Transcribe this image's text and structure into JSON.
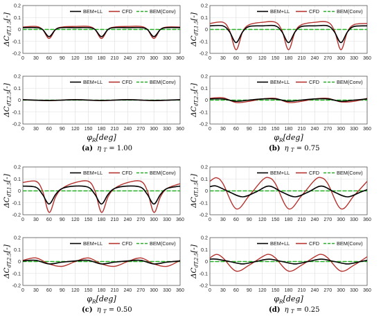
{
  "figure": {
    "xlabel_sym": "φ",
    "xlabel_sub": "R",
    "xlabel_unit": "[deg]",
    "ylabel_top": {
      "pre": "ΔC",
      "sub": "dT,1.5",
      "unit": "[-]"
    },
    "ylabel_bot": {
      "pre": "ΔC",
      "sub": "dT,2.5",
      "unit": "[-]"
    },
    "legend": [
      "BEM+LL",
      "CFD",
      "BEM(Conv)"
    ],
    "colors": {
      "bemll": "#000000",
      "cfd": "#b5322e",
      "conv": "#23b023",
      "grid": "#dcdcdc"
    },
    "x_ticks": [
      0,
      30,
      60,
      90,
      120,
      150,
      180,
      210,
      240,
      270,
      300,
      330,
      360
    ],
    "y_ticks": [
      -0.2,
      -0.1,
      0,
      0.1,
      0.2
    ]
  },
  "captions": [
    {
      "letter": "(a)",
      "eta": "η",
      "sub": "T",
      "value": " = 1.00"
    },
    {
      "letter": "(b)",
      "eta": "η",
      "sub": "T",
      "value": " = 0.75"
    },
    {
      "letter": "(c)",
      "eta": "η",
      "sub": "T",
      "value": " = 0.50"
    },
    {
      "letter": "(d)",
      "eta": "η",
      "sub": "T",
      "value": " = 0.25"
    }
  ],
  "chart_data": [
    {
      "type": "line",
      "panel": "a-top",
      "xlim": [
        0,
        360
      ],
      "ylim": [
        -0.2,
        0.2
      ],
      "grid": true,
      "legend_position": "top-right",
      "series": [
        {
          "name": "BEM+LL",
          "x": [
            0,
            30,
            45,
            60,
            75,
            90,
            120,
            150,
            165,
            180,
            195,
            210,
            240,
            270,
            285,
            300,
            315,
            330,
            360
          ],
          "y": [
            0.015,
            0.015,
            0.0,
            -0.06,
            0.0,
            0.015,
            0.015,
            0.015,
            0.0,
            -0.06,
            0.0,
            0.015,
            0.015,
            0.015,
            0.0,
            -0.06,
            0.0,
            0.015,
            0.015
          ]
        },
        {
          "name": "CFD",
          "x": [
            0,
            30,
            45,
            60,
            75,
            90,
            120,
            150,
            165,
            180,
            195,
            210,
            240,
            270,
            285,
            300,
            315,
            330,
            360
          ],
          "y": [
            0.02,
            0.025,
            0.0,
            -0.075,
            0.0,
            0.02,
            0.025,
            0.025,
            0.0,
            -0.075,
            0.0,
            0.02,
            0.025,
            0.025,
            0.0,
            -0.075,
            0.0,
            0.02,
            0.02
          ]
        },
        {
          "name": "BEM(Conv)",
          "x": [
            0,
            360
          ],
          "y": [
            0,
            0
          ]
        }
      ]
    },
    {
      "type": "line",
      "panel": "a-bottom",
      "xlim": [
        0,
        360
      ],
      "ylim": [
        -0.2,
        0.2
      ],
      "grid": true,
      "legend_position": "top-right",
      "series": [
        {
          "name": "BEM+LL",
          "x": [
            0,
            60,
            120,
            180,
            240,
            300,
            360
          ],
          "y": [
            0.003,
            -0.003,
            0.003,
            -0.003,
            0.003,
            -0.003,
            0.003
          ]
        },
        {
          "name": "CFD",
          "x": [
            0,
            60,
            120,
            180,
            240,
            300,
            360
          ],
          "y": [
            0.004,
            -0.004,
            0.004,
            -0.004,
            0.004,
            -0.004,
            0.004
          ]
        },
        {
          "name": "BEM(Conv)",
          "x": [
            0,
            360
          ],
          "y": [
            0,
            0
          ]
        }
      ]
    },
    {
      "type": "line",
      "panel": "b-top",
      "xlim": [
        0,
        360
      ],
      "ylim": [
        -0.2,
        0.2
      ],
      "grid": true,
      "legend_position": "top-right",
      "series": [
        {
          "name": "BEM+LL",
          "x": [
            0,
            30,
            45,
            60,
            75,
            90,
            120,
            150,
            165,
            180,
            195,
            210,
            240,
            270,
            285,
            300,
            315,
            330,
            360
          ],
          "y": [
            0.03,
            0.03,
            -0.02,
            -0.11,
            -0.02,
            0.025,
            0.03,
            0.03,
            -0.02,
            -0.11,
            -0.02,
            0.025,
            0.03,
            0.03,
            -0.02,
            -0.11,
            -0.02,
            0.025,
            0.03
          ]
        },
        {
          "name": "CFD",
          "x": [
            0,
            30,
            45,
            60,
            75,
            90,
            120,
            150,
            165,
            180,
            195,
            210,
            240,
            270,
            285,
            300,
            315,
            330,
            360
          ],
          "y": [
            0.05,
            0.06,
            -0.01,
            -0.17,
            -0.02,
            0.04,
            0.06,
            0.06,
            -0.01,
            -0.17,
            -0.02,
            0.04,
            0.06,
            0.06,
            -0.01,
            -0.17,
            -0.02,
            0.04,
            0.05
          ]
        },
        {
          "name": "BEM(Conv)",
          "x": [
            0,
            360
          ],
          "y": [
            0,
            0
          ]
        }
      ]
    },
    {
      "type": "line",
      "panel": "b-bottom",
      "xlim": [
        0,
        360
      ],
      "ylim": [
        -0.2,
        0.2
      ],
      "grid": true,
      "legend_position": "top-right",
      "series": [
        {
          "name": "BEM+LL",
          "x": [
            0,
            30,
            60,
            90,
            120,
            150,
            180,
            210,
            240,
            270,
            300,
            330,
            360
          ],
          "y": [
            0.01,
            0.01,
            -0.01,
            0.0,
            0.01,
            0.01,
            -0.01,
            0.0,
            0.01,
            0.01,
            -0.01,
            0.0,
            0.01
          ]
        },
        {
          "name": "CFD",
          "x": [
            0,
            30,
            60,
            90,
            120,
            150,
            180,
            210,
            240,
            270,
            300,
            330,
            360
          ],
          "y": [
            0.015,
            0.02,
            -0.02,
            -0.01,
            0.01,
            0.015,
            -0.02,
            -0.01,
            0.01,
            0.015,
            -0.015,
            -0.01,
            0.015
          ]
        },
        {
          "name": "BEM(Conv)",
          "x": [
            0,
            360
          ],
          "y": [
            0,
            0
          ]
        }
      ]
    },
    {
      "type": "line",
      "panel": "c-top",
      "xlim": [
        0,
        360
      ],
      "ylim": [
        -0.2,
        0.2
      ],
      "grid": true,
      "legend_position": "top-right",
      "series": [
        {
          "name": "BEM+LL",
          "x": [
            0,
            30,
            45,
            60,
            75,
            90,
            120,
            150,
            165,
            180,
            195,
            210,
            240,
            270,
            285,
            300,
            315,
            330,
            360
          ],
          "y": [
            0.04,
            0.03,
            -0.03,
            -0.11,
            -0.03,
            0.02,
            0.04,
            0.03,
            -0.03,
            -0.11,
            -0.03,
            0.02,
            0.04,
            0.03,
            -0.03,
            -0.11,
            -0.03,
            0.02,
            0.04
          ]
        },
        {
          "name": "CFD",
          "x": [
            0,
            30,
            45,
            60,
            75,
            90,
            120,
            150,
            165,
            180,
            195,
            210,
            240,
            270,
            285,
            300,
            315,
            330,
            360
          ],
          "y": [
            0.07,
            0.08,
            0.0,
            -0.18,
            -0.05,
            0.02,
            0.07,
            0.08,
            0.0,
            -0.18,
            -0.05,
            0.02,
            0.07,
            0.08,
            0.0,
            -0.18,
            -0.05,
            0.02,
            0.06
          ]
        },
        {
          "name": "BEM(Conv)",
          "x": [
            0,
            360
          ],
          "y": [
            0,
            0
          ]
        }
      ]
    },
    {
      "type": "line",
      "panel": "c-bottom",
      "xlim": [
        0,
        360
      ],
      "ylim": [
        -0.2,
        0.2
      ],
      "grid": true,
      "legend_position": "top-right",
      "series": [
        {
          "name": "BEM+LL",
          "x": [
            0,
            30,
            60,
            90,
            120,
            150,
            180,
            210,
            240,
            270,
            300,
            330,
            360
          ],
          "y": [
            0.005,
            0.01,
            -0.02,
            -0.005,
            0.005,
            0.01,
            -0.02,
            -0.005,
            0.005,
            0.01,
            -0.02,
            -0.005,
            0.005
          ]
        },
        {
          "name": "CFD",
          "x": [
            0,
            30,
            60,
            90,
            120,
            150,
            180,
            210,
            240,
            270,
            300,
            330,
            360
          ],
          "y": [
            0.01,
            0.03,
            -0.02,
            -0.04,
            0.0,
            0.03,
            -0.02,
            -0.04,
            0.0,
            0.03,
            -0.02,
            -0.04,
            0.01
          ]
        },
        {
          "name": "BEM(Conv)",
          "x": [
            0,
            360
          ],
          "y": [
            0,
            0
          ]
        }
      ]
    },
    {
      "type": "line",
      "panel": "d-top",
      "xlim": [
        0,
        360
      ],
      "ylim": [
        -0.2,
        0.2
      ],
      "grid": true,
      "legend_position": "top-right",
      "series": [
        {
          "name": "BEM+LL",
          "x": [
            0,
            15,
            45,
            75,
            105,
            135,
            165,
            195,
            225,
            255,
            285,
            315,
            345,
            360
          ],
          "y": [
            0.035,
            0.04,
            -0.01,
            -0.05,
            -0.01,
            0.04,
            -0.01,
            -0.05,
            -0.01,
            0.04,
            -0.01,
            -0.05,
            -0.01,
            0.01
          ]
        },
        {
          "name": "CFD",
          "x": [
            0,
            15,
            30,
            60,
            90,
            120,
            135,
            150,
            180,
            210,
            240,
            255,
            270,
            300,
            330,
            360
          ],
          "y": [
            0.08,
            0.11,
            0.06,
            -0.15,
            -0.04,
            0.09,
            0.11,
            0.06,
            -0.15,
            -0.04,
            0.09,
            0.11,
            0.06,
            -0.15,
            -0.04,
            0.08
          ]
        },
        {
          "name": "BEM(Conv)",
          "x": [
            0,
            360
          ],
          "y": [
            0,
            0
          ]
        }
      ]
    },
    {
      "type": "line",
      "panel": "d-bottom",
      "xlim": [
        0,
        360
      ],
      "ylim": [
        -0.2,
        0.2
      ],
      "grid": true,
      "legend_position": "top-right",
      "series": [
        {
          "name": "BEM+LL",
          "x": [
            0,
            15,
            45,
            75,
            105,
            135,
            165,
            195,
            225,
            255,
            285,
            315,
            345,
            360
          ],
          "y": [
            0.02,
            0.02,
            0.0,
            -0.02,
            0.0,
            0.02,
            0.0,
            -0.02,
            0.0,
            0.02,
            0.0,
            -0.02,
            0.0,
            0.01
          ]
        },
        {
          "name": "CFD",
          "x": [
            0,
            15,
            30,
            60,
            90,
            120,
            135,
            150,
            180,
            210,
            240,
            255,
            270,
            300,
            330,
            360
          ],
          "y": [
            0.03,
            0.06,
            0.03,
            -0.08,
            -0.03,
            0.04,
            0.06,
            0.03,
            -0.08,
            -0.03,
            0.04,
            0.06,
            0.03,
            -0.08,
            -0.03,
            0.04
          ]
        },
        {
          "name": "BEM(Conv)",
          "x": [
            0,
            360
          ],
          "y": [
            0,
            0
          ]
        }
      ]
    }
  ]
}
